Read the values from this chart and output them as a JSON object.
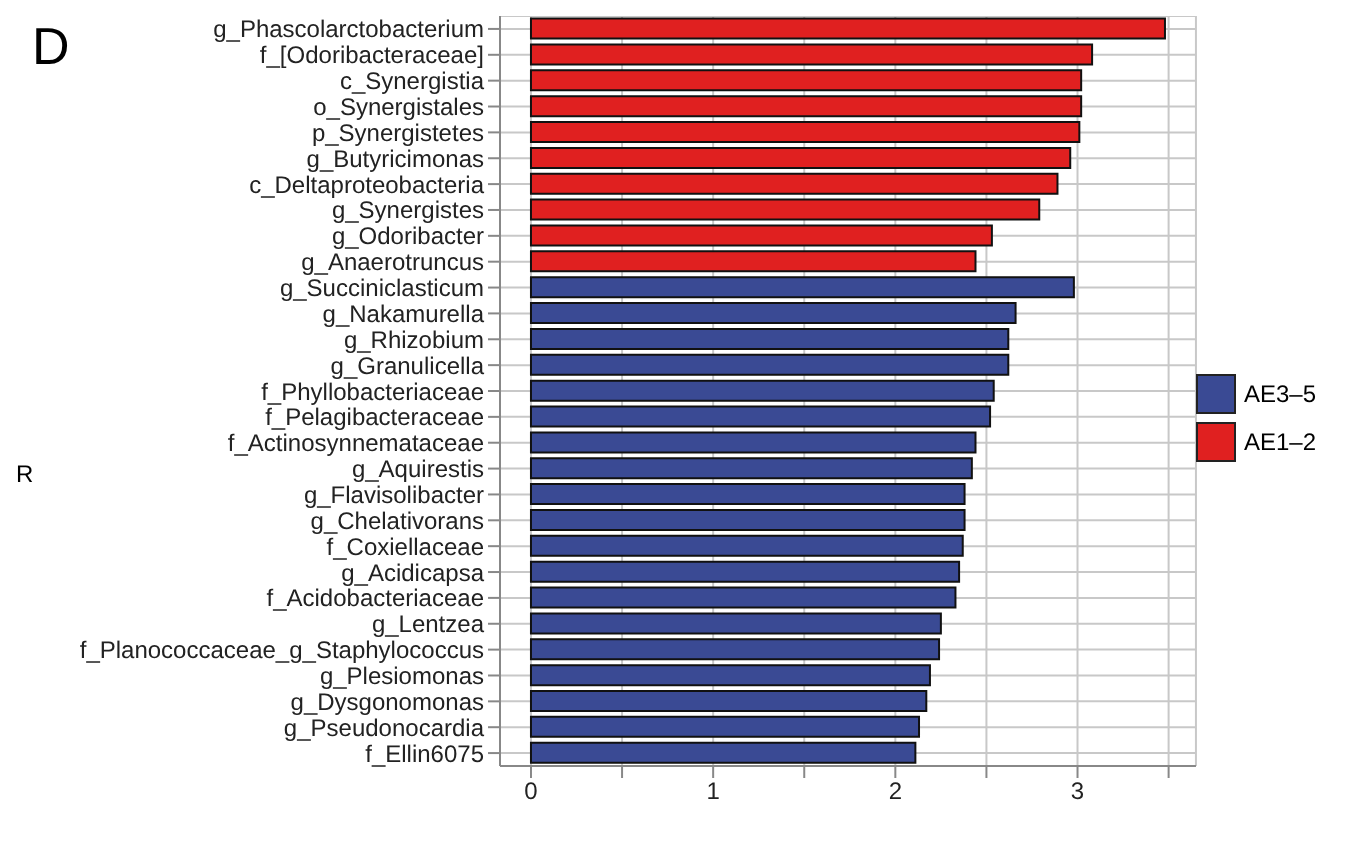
{
  "chart_data": {
    "type": "bar",
    "orientation": "horizontal",
    "stacked": true,
    "categories": [
      "g_Phascolarctobacterium",
      "f_[Odoribacteraceae]",
      "c_Synergistia",
      "o_Synergistales",
      "p_Synergistetes",
      "g_Butyricimonas",
      "c_Deltaproteobacteria",
      "g_Synergistes",
      "g_Odoribacter",
      "g_Anaerotruncus",
      "g_Succiniclasticum",
      "g_Nakamurella",
      "g_Rhizobium",
      "g_Granulicella",
      "f_Phyllobacteriaceae",
      "f_Pelagibacteraceae",
      "f_Actinosynnemataceae",
      "g_Aquirestis",
      "g_Flavisolibacter",
      "g_Chelativorans",
      "f_Coxiellaceae",
      "g_Acidicapsa",
      "f_Acidobacteriaceae",
      "g_Lentzea",
      "f_Planococcaceae_g_Staphylococcus",
      "g_Plesiomonas",
      "g_Dysgonomonas",
      "g_Pseudonocardia",
      "f_Ellin6075"
    ],
    "series": [
      {
        "name": "AE3–5",
        "color": "#3a4a94",
        "values": [
          null,
          null,
          null,
          null,
          null,
          null,
          null,
          null,
          null,
          null,
          2.98,
          2.66,
          2.62,
          2.62,
          2.54,
          2.52,
          2.44,
          2.42,
          2.38,
          2.38,
          2.37,
          2.35,
          2.33,
          2.25,
          2.24,
          2.19,
          2.17,
          2.13,
          2.11
        ]
      },
      {
        "name": "AE1–2",
        "color": "#e02020",
        "values": [
          3.48,
          3.08,
          3.02,
          3.02,
          3.01,
          2.96,
          2.89,
          2.79,
          2.53,
          2.44,
          null,
          null,
          null,
          null,
          null,
          null,
          null,
          null,
          null,
          null,
          null,
          null,
          null,
          null,
          null,
          null,
          null,
          null,
          null
        ]
      }
    ],
    "xlim": [
      -0.17,
      3.65
    ],
    "xticks": [
      0,
      {
        "value": 0.5,
        "label": null
      },
      1,
      {
        "value": 1.5,
        "label": null
      },
      2,
      {
        "value": 2.5,
        "label": null
      },
      3,
      {
        "value": 3.5,
        "label": null
      }
    ],
    "grid": true,
    "legend": "right",
    "annotations": [
      "D",
      "R"
    ]
  }
}
